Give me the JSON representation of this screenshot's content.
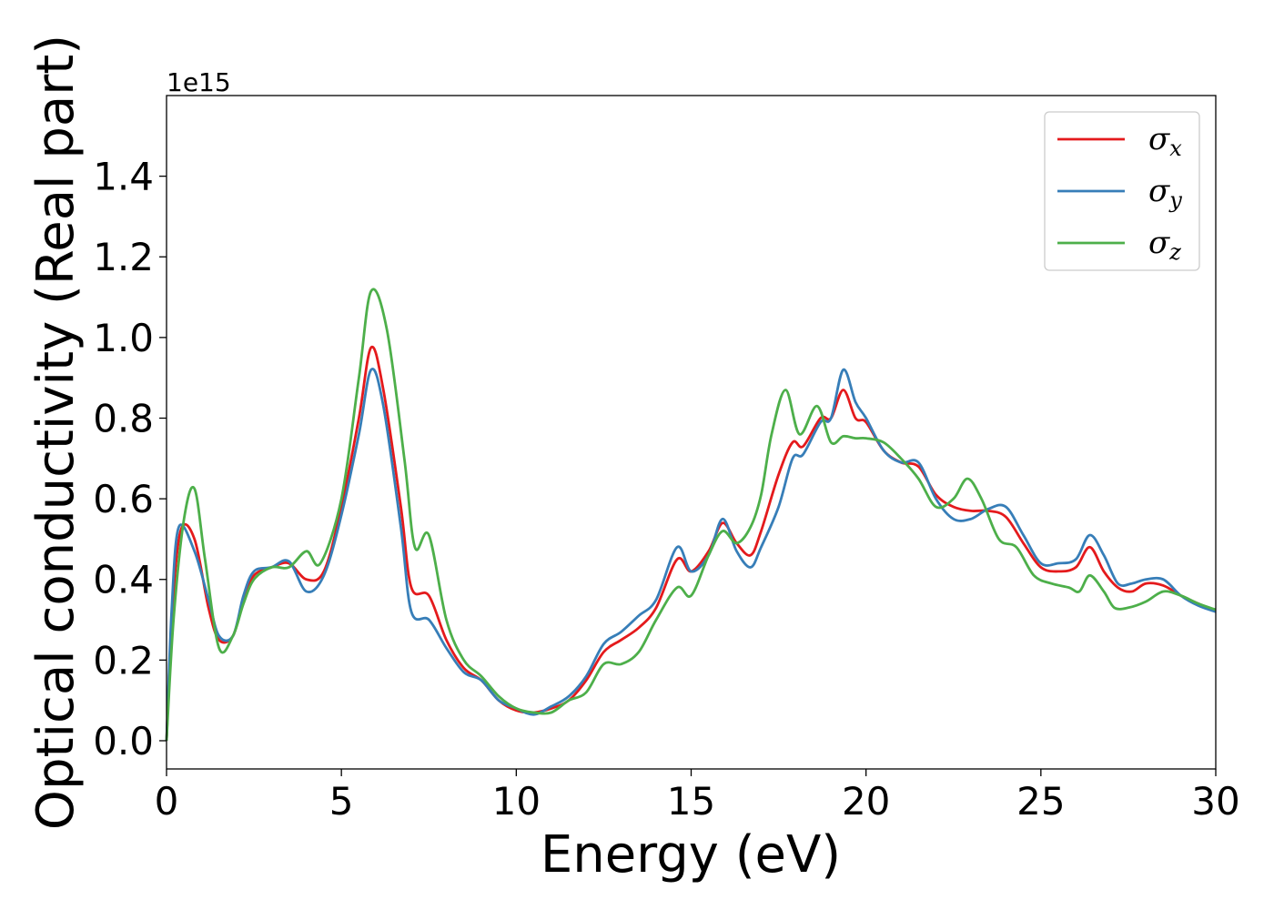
{
  "chart_data": {
    "type": "line",
    "xlabel": "Energy (eV)",
    "ylabel": "Optical conductivity (Real part)",
    "y_offset_label": "1e15",
    "xlim": [
      0,
      30
    ],
    "ylim": [
      -0.07,
      1.6
    ],
    "x_ticks": [
      0,
      5,
      10,
      15,
      20,
      25,
      30
    ],
    "x_tick_labels": [
      "0",
      "5",
      "10",
      "15",
      "20",
      "25",
      "30"
    ],
    "y_ticks": [
      0.0,
      0.2,
      0.4,
      0.6,
      0.8,
      1.0,
      1.2,
      1.4
    ],
    "y_tick_labels": [
      "0.0",
      "0.2",
      "0.4",
      "0.6",
      "0.8",
      "1.0",
      "1.2",
      "1.4"
    ],
    "grid": false,
    "legend_position": "top-right",
    "series": [
      {
        "name": "σ_x",
        "legend_base": "σ",
        "legend_sub": "x",
        "color": "#e41a1c",
        "points": [
          [
            0,
            0.0
          ],
          [
            0.15,
            0.3
          ],
          [
            0.4,
            0.52
          ],
          [
            0.8,
            0.5
          ],
          [
            1.2,
            0.33
          ],
          [
            1.5,
            0.25
          ],
          [
            1.9,
            0.26
          ],
          [
            2.2,
            0.35
          ],
          [
            2.5,
            0.41
          ],
          [
            3.0,
            0.43
          ],
          [
            3.5,
            0.44
          ],
          [
            4.0,
            0.4
          ],
          [
            4.5,
            0.42
          ],
          [
            5.0,
            0.58
          ],
          [
            5.5,
            0.8
          ],
          [
            5.85,
            0.975
          ],
          [
            6.2,
            0.87
          ],
          [
            6.7,
            0.58
          ],
          [
            7.0,
            0.38
          ],
          [
            7.5,
            0.36
          ],
          [
            8.0,
            0.25
          ],
          [
            8.5,
            0.18
          ],
          [
            9.0,
            0.15
          ],
          [
            9.5,
            0.1
          ],
          [
            10.0,
            0.075
          ],
          [
            10.5,
            0.07
          ],
          [
            11.0,
            0.08
          ],
          [
            11.5,
            0.1
          ],
          [
            12.0,
            0.15
          ],
          [
            12.5,
            0.22
          ],
          [
            13.0,
            0.25
          ],
          [
            13.5,
            0.28
          ],
          [
            14.0,
            0.33
          ],
          [
            14.6,
            0.45
          ],
          [
            15.0,
            0.42
          ],
          [
            15.5,
            0.47
          ],
          [
            15.9,
            0.54
          ],
          [
            16.3,
            0.49
          ],
          [
            16.7,
            0.46
          ],
          [
            17.0,
            0.52
          ],
          [
            17.5,
            0.66
          ],
          [
            17.9,
            0.74
          ],
          [
            18.2,
            0.73
          ],
          [
            18.7,
            0.8
          ],
          [
            19.0,
            0.8
          ],
          [
            19.35,
            0.87
          ],
          [
            19.7,
            0.8
          ],
          [
            20.0,
            0.79
          ],
          [
            20.5,
            0.72
          ],
          [
            21.0,
            0.69
          ],
          [
            21.5,
            0.68
          ],
          [
            22.0,
            0.61
          ],
          [
            22.5,
            0.58
          ],
          [
            23.0,
            0.57
          ],
          [
            23.5,
            0.57
          ],
          [
            24.0,
            0.555
          ],
          [
            24.5,
            0.49
          ],
          [
            25.0,
            0.43
          ],
          [
            25.5,
            0.42
          ],
          [
            26.0,
            0.43
          ],
          [
            26.4,
            0.48
          ],
          [
            26.8,
            0.42
          ],
          [
            27.2,
            0.38
          ],
          [
            27.6,
            0.37
          ],
          [
            28.0,
            0.39
          ],
          [
            28.5,
            0.385
          ],
          [
            29.0,
            0.36
          ],
          [
            29.5,
            0.34
          ],
          [
            30.0,
            0.32
          ]
        ]
      },
      {
        "name": "σ_y",
        "legend_base": "σ",
        "legend_sub": "y",
        "color": "#377eb8",
        "points": [
          [
            0,
            0.0
          ],
          [
            0.15,
            0.33
          ],
          [
            0.35,
            0.53
          ],
          [
            0.8,
            0.47
          ],
          [
            1.2,
            0.35
          ],
          [
            1.5,
            0.26
          ],
          [
            1.9,
            0.26
          ],
          [
            2.2,
            0.36
          ],
          [
            2.5,
            0.42
          ],
          [
            3.0,
            0.43
          ],
          [
            3.5,
            0.445
          ],
          [
            4.0,
            0.37
          ],
          [
            4.5,
            0.41
          ],
          [
            5.0,
            0.56
          ],
          [
            5.5,
            0.76
          ],
          [
            5.85,
            0.92
          ],
          [
            6.2,
            0.83
          ],
          [
            6.7,
            0.53
          ],
          [
            7.0,
            0.32
          ],
          [
            7.5,
            0.3
          ],
          [
            8.0,
            0.23
          ],
          [
            8.5,
            0.17
          ],
          [
            9.0,
            0.15
          ],
          [
            9.5,
            0.1
          ],
          [
            10.0,
            0.08
          ],
          [
            10.5,
            0.065
          ],
          [
            11.0,
            0.085
          ],
          [
            11.5,
            0.11
          ],
          [
            12.0,
            0.16
          ],
          [
            12.5,
            0.24
          ],
          [
            13.0,
            0.27
          ],
          [
            13.5,
            0.31
          ],
          [
            14.0,
            0.35
          ],
          [
            14.6,
            0.48
          ],
          [
            15.0,
            0.42
          ],
          [
            15.5,
            0.46
          ],
          [
            15.9,
            0.55
          ],
          [
            16.3,
            0.47
          ],
          [
            16.7,
            0.43
          ],
          [
            17.0,
            0.48
          ],
          [
            17.5,
            0.58
          ],
          [
            17.9,
            0.7
          ],
          [
            18.2,
            0.71
          ],
          [
            18.7,
            0.79
          ],
          [
            19.0,
            0.8
          ],
          [
            19.35,
            0.92
          ],
          [
            19.7,
            0.84
          ],
          [
            20.0,
            0.8
          ],
          [
            20.5,
            0.72
          ],
          [
            21.0,
            0.69
          ],
          [
            21.5,
            0.69
          ],
          [
            22.0,
            0.6
          ],
          [
            22.5,
            0.55
          ],
          [
            23.0,
            0.55
          ],
          [
            23.5,
            0.575
          ],
          [
            24.0,
            0.58
          ],
          [
            24.5,
            0.51
          ],
          [
            25.0,
            0.44
          ],
          [
            25.5,
            0.44
          ],
          [
            26.0,
            0.45
          ],
          [
            26.4,
            0.51
          ],
          [
            26.8,
            0.46
          ],
          [
            27.2,
            0.39
          ],
          [
            27.6,
            0.39
          ],
          [
            28.0,
            0.4
          ],
          [
            28.5,
            0.4
          ],
          [
            29.0,
            0.36
          ],
          [
            29.5,
            0.335
          ],
          [
            30.0,
            0.32
          ]
        ]
      },
      {
        "name": "σ_z",
        "legend_base": "σ",
        "legend_sub": "z",
        "color": "#4daf4a",
        "points": [
          [
            0,
            0.0
          ],
          [
            0.2,
            0.3
          ],
          [
            0.5,
            0.55
          ],
          [
            0.8,
            0.625
          ],
          [
            1.1,
            0.45
          ],
          [
            1.5,
            0.23
          ],
          [
            1.9,
            0.26
          ],
          [
            2.2,
            0.34
          ],
          [
            2.5,
            0.4
          ],
          [
            3.0,
            0.43
          ],
          [
            3.5,
            0.43
          ],
          [
            4.0,
            0.47
          ],
          [
            4.4,
            0.44
          ],
          [
            5.0,
            0.6
          ],
          [
            5.5,
            0.9
          ],
          [
            5.85,
            1.115
          ],
          [
            6.3,
            1.02
          ],
          [
            6.8,
            0.7
          ],
          [
            7.1,
            0.48
          ],
          [
            7.5,
            0.51
          ],
          [
            8.0,
            0.3
          ],
          [
            8.5,
            0.2
          ],
          [
            9.0,
            0.16
          ],
          [
            9.5,
            0.11
          ],
          [
            10.0,
            0.08
          ],
          [
            10.5,
            0.07
          ],
          [
            11.0,
            0.07
          ],
          [
            11.5,
            0.1
          ],
          [
            12.0,
            0.12
          ],
          [
            12.5,
            0.19
          ],
          [
            13.0,
            0.19
          ],
          [
            13.5,
            0.22
          ],
          [
            14.0,
            0.3
          ],
          [
            14.6,
            0.38
          ],
          [
            15.0,
            0.36
          ],
          [
            15.5,
            0.46
          ],
          [
            15.9,
            0.52
          ],
          [
            16.3,
            0.49
          ],
          [
            16.7,
            0.53
          ],
          [
            17.0,
            0.61
          ],
          [
            17.3,
            0.76
          ],
          [
            17.7,
            0.87
          ],
          [
            18.1,
            0.76
          ],
          [
            18.6,
            0.83
          ],
          [
            19.0,
            0.74
          ],
          [
            19.35,
            0.755
          ],
          [
            19.7,
            0.75
          ],
          [
            20.0,
            0.75
          ],
          [
            20.5,
            0.74
          ],
          [
            21.0,
            0.7
          ],
          [
            21.5,
            0.65
          ],
          [
            22.0,
            0.58
          ],
          [
            22.5,
            0.6
          ],
          [
            22.9,
            0.65
          ],
          [
            23.3,
            0.6
          ],
          [
            23.8,
            0.5
          ],
          [
            24.3,
            0.48
          ],
          [
            24.8,
            0.41
          ],
          [
            25.3,
            0.39
          ],
          [
            25.8,
            0.38
          ],
          [
            26.1,
            0.37
          ],
          [
            26.4,
            0.41
          ],
          [
            26.8,
            0.37
          ],
          [
            27.1,
            0.33
          ],
          [
            27.5,
            0.33
          ],
          [
            28.0,
            0.345
          ],
          [
            28.5,
            0.37
          ],
          [
            29.0,
            0.36
          ],
          [
            29.5,
            0.34
          ],
          [
            30.0,
            0.325
          ]
        ]
      }
    ]
  }
}
